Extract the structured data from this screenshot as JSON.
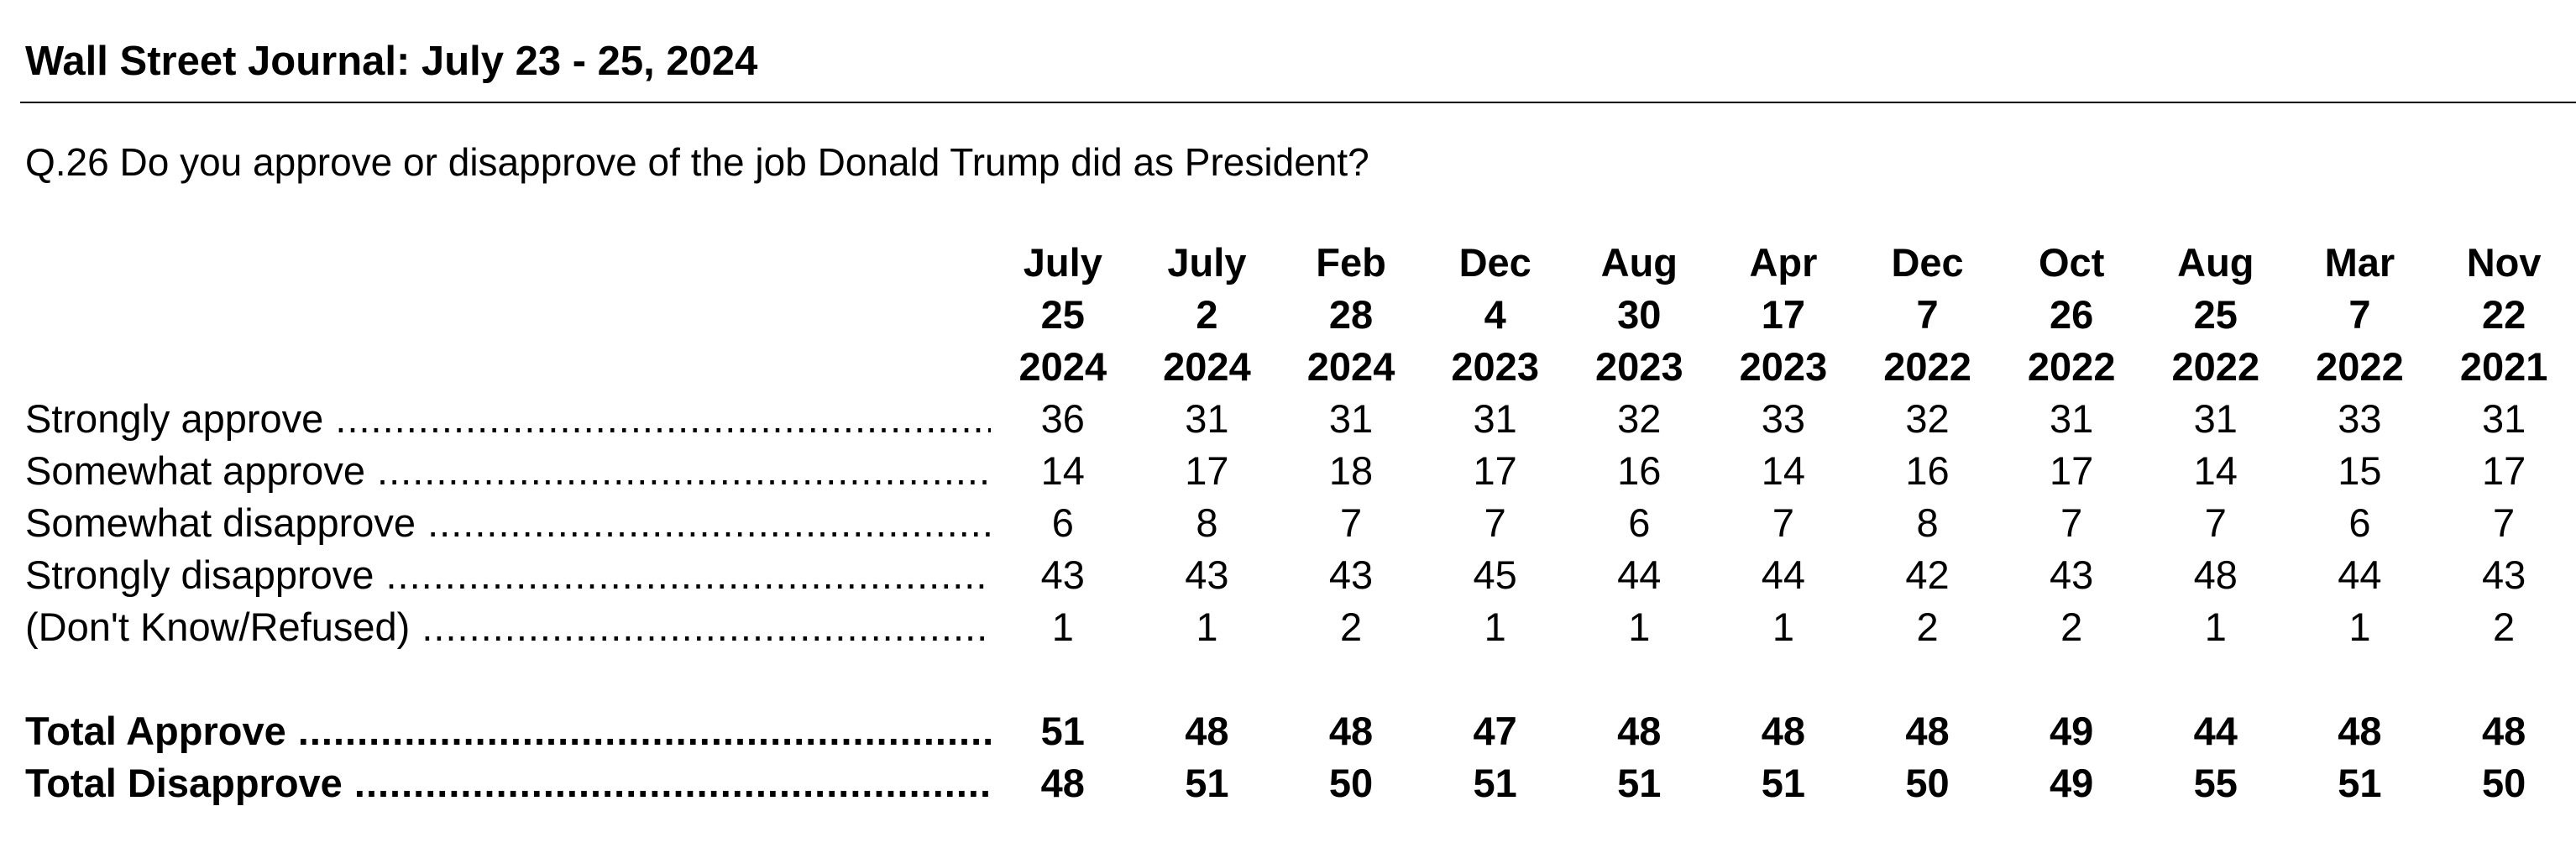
{
  "header": {
    "title": "Wall Street Journal: July 23 - 25, 2024"
  },
  "question": {
    "text": "Q.26 Do you approve or disapprove of the job Donald Trump did as President?"
  },
  "table": {
    "columns": [
      {
        "month": "July",
        "day": "25",
        "year": "2024"
      },
      {
        "month": "July",
        "day": "2",
        "year": "2024"
      },
      {
        "month": "Feb",
        "day": "28",
        "year": "2024"
      },
      {
        "month": "Dec",
        "day": "4",
        "year": "2023"
      },
      {
        "month": "Aug",
        "day": "30",
        "year": "2023"
      },
      {
        "month": "Apr",
        "day": "17",
        "year": "2023"
      },
      {
        "month": "Dec",
        "day": "7",
        "year": "2022"
      },
      {
        "month": "Oct",
        "day": "26",
        "year": "2022"
      },
      {
        "month": "Aug",
        "day": "25",
        "year": "2022"
      },
      {
        "month": "Mar",
        "day": "7",
        "year": "2022"
      },
      {
        "month": "Nov",
        "day": "22",
        "year": "2021"
      }
    ],
    "rows": [
      {
        "label": "Strongly approve",
        "values": [
          "36",
          "31",
          "31",
          "31",
          "32",
          "33",
          "32",
          "31",
          "31",
          "33",
          "31"
        ]
      },
      {
        "label": "Somewhat approve",
        "values": [
          "14",
          "17",
          "18",
          "17",
          "16",
          "14",
          "16",
          "17",
          "14",
          "15",
          "17"
        ]
      },
      {
        "label": "Somewhat disapprove",
        "values": [
          "6",
          "8",
          "7",
          "7",
          "6",
          "7",
          "8",
          "7",
          "7",
          "6",
          "7"
        ]
      },
      {
        "label": "Strongly disapprove",
        "values": [
          "43",
          "43",
          "43",
          "45",
          "44",
          "44",
          "42",
          "43",
          "48",
          "44",
          "43"
        ]
      },
      {
        "label": "(Don't Know/Refused)",
        "values": [
          "1",
          "1",
          "2",
          "1",
          "1",
          "1",
          "2",
          "2",
          "1",
          "1",
          "2"
        ]
      }
    ],
    "totals": [
      {
        "label": "Total Approve",
        "values": [
          "51",
          "48",
          "48",
          "47",
          "48",
          "48",
          "48",
          "49",
          "44",
          "48",
          "48"
        ]
      },
      {
        "label": "Total Disapprove",
        "values": [
          "48",
          "51",
          "50",
          "51",
          "51",
          "51",
          "50",
          "49",
          "55",
          "51",
          "50"
        ]
      }
    ]
  }
}
